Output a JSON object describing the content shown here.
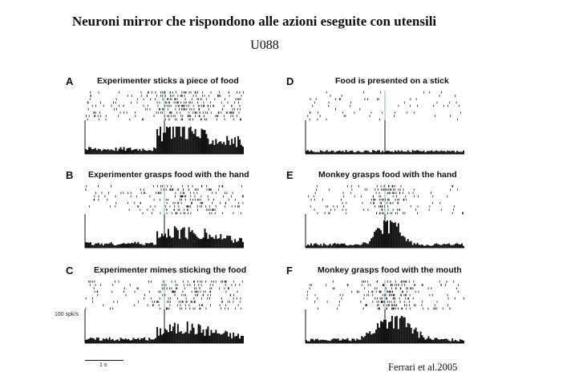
{
  "slide": {
    "title": "Neuroni mirror che rispondono alle azioni eseguite con utensili",
    "subtitle": "U088",
    "citation": "Ferrari et al.2005",
    "y_scale_label": "100 spk/s",
    "time_scale_label": "1 s"
  },
  "panels": [
    {
      "letter": "A",
      "title": "Experimenter sticks a piece of food",
      "profile": "late"
    },
    {
      "letter": "B",
      "title": "Experimenter grasps food with the hand",
      "profile": "late-weak"
    },
    {
      "letter": "C",
      "title": "Experimenter mimes sticking the food",
      "profile": "late-weak"
    },
    {
      "letter": "D",
      "title": "Food is  presented on a stick",
      "profile": "flat"
    },
    {
      "letter": "E",
      "title": "Monkey grasps food with the hand",
      "profile": "peak"
    },
    {
      "letter": "F",
      "title": "Monkey grasps food with the mouth",
      "profile": "peak-broad"
    }
  ],
  "colors": {
    "ink": "#111111",
    "alignment_marker": "#7ab8c8"
  }
}
